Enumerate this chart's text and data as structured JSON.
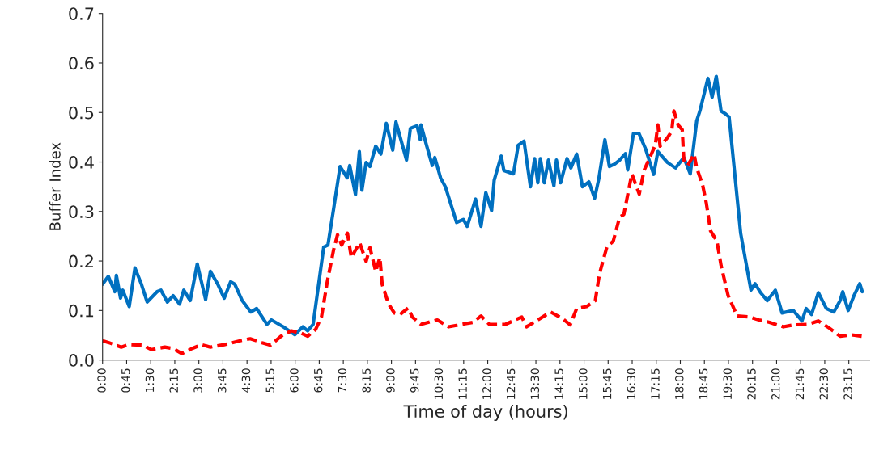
{
  "chart_data": {
    "type": "line",
    "xlabel": "Time of day (hours)",
    "ylabel": "Buffer Index",
    "xlim": [
      0,
      23.9
    ],
    "ylim": [
      0,
      0.7
    ],
    "xticks": [
      {
        "value": 0,
        "label": "0:00"
      },
      {
        "value": 0.75,
        "label": "0:45"
      },
      {
        "value": 1.5,
        "label": "1:30"
      },
      {
        "value": 2.25,
        "label": "2:15"
      },
      {
        "value": 3,
        "label": "3:00"
      },
      {
        "value": 3.75,
        "label": "3:45"
      },
      {
        "value": 4.5,
        "label": "4:30"
      },
      {
        "value": 5.25,
        "label": "5:15"
      },
      {
        "value": 6,
        "label": "6:00"
      },
      {
        "value": 6.75,
        "label": "6:45"
      },
      {
        "value": 7.5,
        "label": "7:30"
      },
      {
        "value": 8.25,
        "label": "8:15"
      },
      {
        "value": 9,
        "label": "9:00"
      },
      {
        "value": 9.75,
        "label": "9:45"
      },
      {
        "value": 10.5,
        "label": "10:30"
      },
      {
        "value": 11.25,
        "label": "11:15"
      },
      {
        "value": 12,
        "label": "12:00"
      },
      {
        "value": 12.75,
        "label": "12:45"
      },
      {
        "value": 13.5,
        "label": "13:30"
      },
      {
        "value": 14.25,
        "label": "14:15"
      },
      {
        "value": 15,
        "label": "15:00"
      },
      {
        "value": 15.75,
        "label": "15:45"
      },
      {
        "value": 16.5,
        "label": "16:30"
      },
      {
        "value": 17.25,
        "label": "17:15"
      },
      {
        "value": 18,
        "label": "18:00"
      },
      {
        "value": 18.75,
        "label": "18:45"
      },
      {
        "value": 19.5,
        "label": "19:30"
      },
      {
        "value": 20.25,
        "label": "20:15"
      },
      {
        "value": 21,
        "label": "21:00"
      },
      {
        "value": 21.75,
        "label": "21:45"
      },
      {
        "value": 22.5,
        "label": "22:30"
      },
      {
        "value": 23.25,
        "label": "23:15"
      }
    ],
    "yticks": [
      {
        "value": 0,
        "label": "0.0"
      },
      0.1,
      0.2,
      0.3,
      0.4,
      0.5,
      0.6,
      0.7
    ],
    "grid": false,
    "legend": false,
    "marker": "none",
    "series": [
      {
        "color": "#0070c0",
        "line_style": "solid",
        "x": [
          0,
          0.18,
          0.38,
          0.43,
          0.56,
          0.63,
          0.83,
          1.01,
          1.21,
          1.39,
          1.7,
          1.82,
          2.02,
          2.2,
          2.4,
          2.53,
          2.73,
          2.95,
          3.21,
          3.36,
          3.59,
          3.79,
          3.99,
          4.12,
          4.35,
          4.62,
          4.8,
          5.12,
          5.26,
          5.63,
          5.99,
          6.24,
          6.39,
          6.56,
          6.89,
          7.02,
          7.2,
          7.4,
          7.62,
          7.7,
          7.88,
          8.0,
          8.08,
          8.21,
          8.33,
          8.51,
          8.67,
          8.84,
          9.04,
          9.14,
          9.47,
          9.59,
          9.8,
          9.9,
          9.92,
          10.1,
          10.27,
          10.35,
          10.53,
          10.68,
          11.03,
          11.24,
          11.36,
          11.62,
          11.79,
          11.94,
          12.12,
          12.2,
          12.42,
          12.5,
          12.8,
          12.95,
          13.13,
          13.33,
          13.46,
          13.56,
          13.64,
          13.76,
          13.89,
          14.06,
          14.14,
          14.27,
          14.47,
          14.59,
          14.77,
          14.95,
          15.15,
          15.33,
          15.46,
          15.65,
          15.79,
          15.96,
          16.11,
          16.29,
          16.36,
          16.54,
          16.71,
          16.92,
          17.17,
          17.3,
          17.6,
          17.85,
          18.11,
          18.31,
          18.51,
          18.61,
          18.86,
          18.99,
          19.12,
          19.27,
          19.39,
          19.52,
          19.88,
          20.2,
          20.33,
          20.5,
          20.71,
          20.96,
          21.17,
          21.52,
          21.79,
          21.92,
          22.09,
          22.3,
          22.55,
          22.78,
          22.98,
          23.06,
          23.23,
          23.41,
          23.59,
          23.67
        ],
        "values": [
          0.153,
          0.169,
          0.138,
          0.171,
          0.125,
          0.141,
          0.108,
          0.186,
          0.153,
          0.117,
          0.138,
          0.141,
          0.117,
          0.13,
          0.113,
          0.141,
          0.12,
          0.194,
          0.122,
          0.179,
          0.153,
          0.125,
          0.158,
          0.153,
          0.12,
          0.097,
          0.104,
          0.072,
          0.081,
          0.067,
          0.051,
          0.067,
          0.059,
          0.072,
          0.228,
          0.232,
          0.306,
          0.391,
          0.368,
          0.393,
          0.334,
          0.421,
          0.343,
          0.399,
          0.391,
          0.432,
          0.416,
          0.478,
          0.424,
          0.481,
          0.404,
          0.468,
          0.473,
          0.445,
          0.475,
          0.432,
          0.393,
          0.409,
          0.368,
          0.35,
          0.278,
          0.284,
          0.27,
          0.325,
          0.27,
          0.338,
          0.302,
          0.363,
          0.412,
          0.383,
          0.376,
          0.434,
          0.442,
          0.35,
          0.407,
          0.358,
          0.407,
          0.358,
          0.404,
          0.352,
          0.404,
          0.358,
          0.407,
          0.388,
          0.416,
          0.35,
          0.36,
          0.327,
          0.366,
          0.445,
          0.391,
          0.396,
          0.404,
          0.417,
          0.384,
          0.458,
          0.458,
          0.426,
          0.375,
          0.421,
          0.399,
          0.388,
          0.409,
          0.376,
          0.483,
          0.503,
          0.569,
          0.531,
          0.573,
          0.503,
          0.498,
          0.491,
          0.256,
          0.141,
          0.154,
          0.136,
          0.12,
          0.141,
          0.095,
          0.1,
          0.079,
          0.104,
          0.092,
          0.136,
          0.104,
          0.097,
          0.12,
          0.138,
          0.1,
          0.13,
          0.154,
          0.138
        ]
      },
      {
        "color": "#ff0000",
        "line_style": "dashed",
        "x": [
          0,
          0.2,
          0.58,
          0.81,
          1.26,
          1.52,
          1.94,
          2.2,
          2.47,
          2.78,
          3.08,
          3.36,
          3.79,
          4.29,
          4.6,
          4.97,
          5.23,
          5.56,
          5.88,
          6.19,
          6.39,
          6.64,
          6.82,
          7.0,
          7.2,
          7.32,
          7.45,
          7.63,
          7.75,
          8.01,
          8.21,
          8.33,
          8.51,
          8.64,
          8.71,
          8.91,
          9.09,
          9.27,
          9.52,
          9.65,
          9.92,
          10.43,
          10.78,
          11.19,
          11.54,
          11.79,
          12.05,
          12.55,
          13.06,
          13.21,
          13.56,
          13.96,
          14.32,
          14.57,
          14.77,
          15.08,
          15.35,
          15.48,
          15.71,
          15.91,
          16.11,
          16.24,
          16.34,
          16.49,
          16.72,
          16.87,
          17.05,
          17.22,
          17.3,
          17.37,
          17.6,
          17.73,
          17.8,
          17.93,
          18.06,
          18.11,
          18.23,
          18.43,
          18.51,
          18.69,
          18.81,
          18.94,
          19.14,
          19.27,
          19.49,
          19.77,
          20.13,
          20.45,
          20.78,
          21.21,
          21.54,
          21.97,
          22.3,
          22.65,
          22.98,
          23.31,
          23.66
        ],
        "values": [
          0.039,
          0.035,
          0.026,
          0.031,
          0.03,
          0.021,
          0.026,
          0.023,
          0.013,
          0.023,
          0.031,
          0.026,
          0.031,
          0.039,
          0.043,
          0.035,
          0.03,
          0.048,
          0.059,
          0.054,
          0.048,
          0.062,
          0.087,
          0.158,
          0.223,
          0.253,
          0.232,
          0.256,
          0.207,
          0.237,
          0.199,
          0.227,
          0.179,
          0.207,
          0.153,
          0.113,
          0.095,
          0.092,
          0.105,
          0.087,
          0.072,
          0.081,
          0.067,
          0.072,
          0.076,
          0.089,
          0.072,
          0.072,
          0.087,
          0.067,
          0.081,
          0.097,
          0.084,
          0.071,
          0.104,
          0.108,
          0.12,
          0.174,
          0.228,
          0.24,
          0.289,
          0.294,
          0.327,
          0.376,
          0.335,
          0.383,
          0.409,
          0.434,
          0.475,
          0.432,
          0.449,
          0.462,
          0.503,
          0.475,
          0.465,
          0.404,
          0.393,
          0.416,
          0.388,
          0.355,
          0.317,
          0.261,
          0.24,
          0.191,
          0.13,
          0.089,
          0.087,
          0.081,
          0.076,
          0.067,
          0.071,
          0.072,
          0.079,
          0.064,
          0.048,
          0.051,
          0.048
        ]
      }
    ]
  }
}
